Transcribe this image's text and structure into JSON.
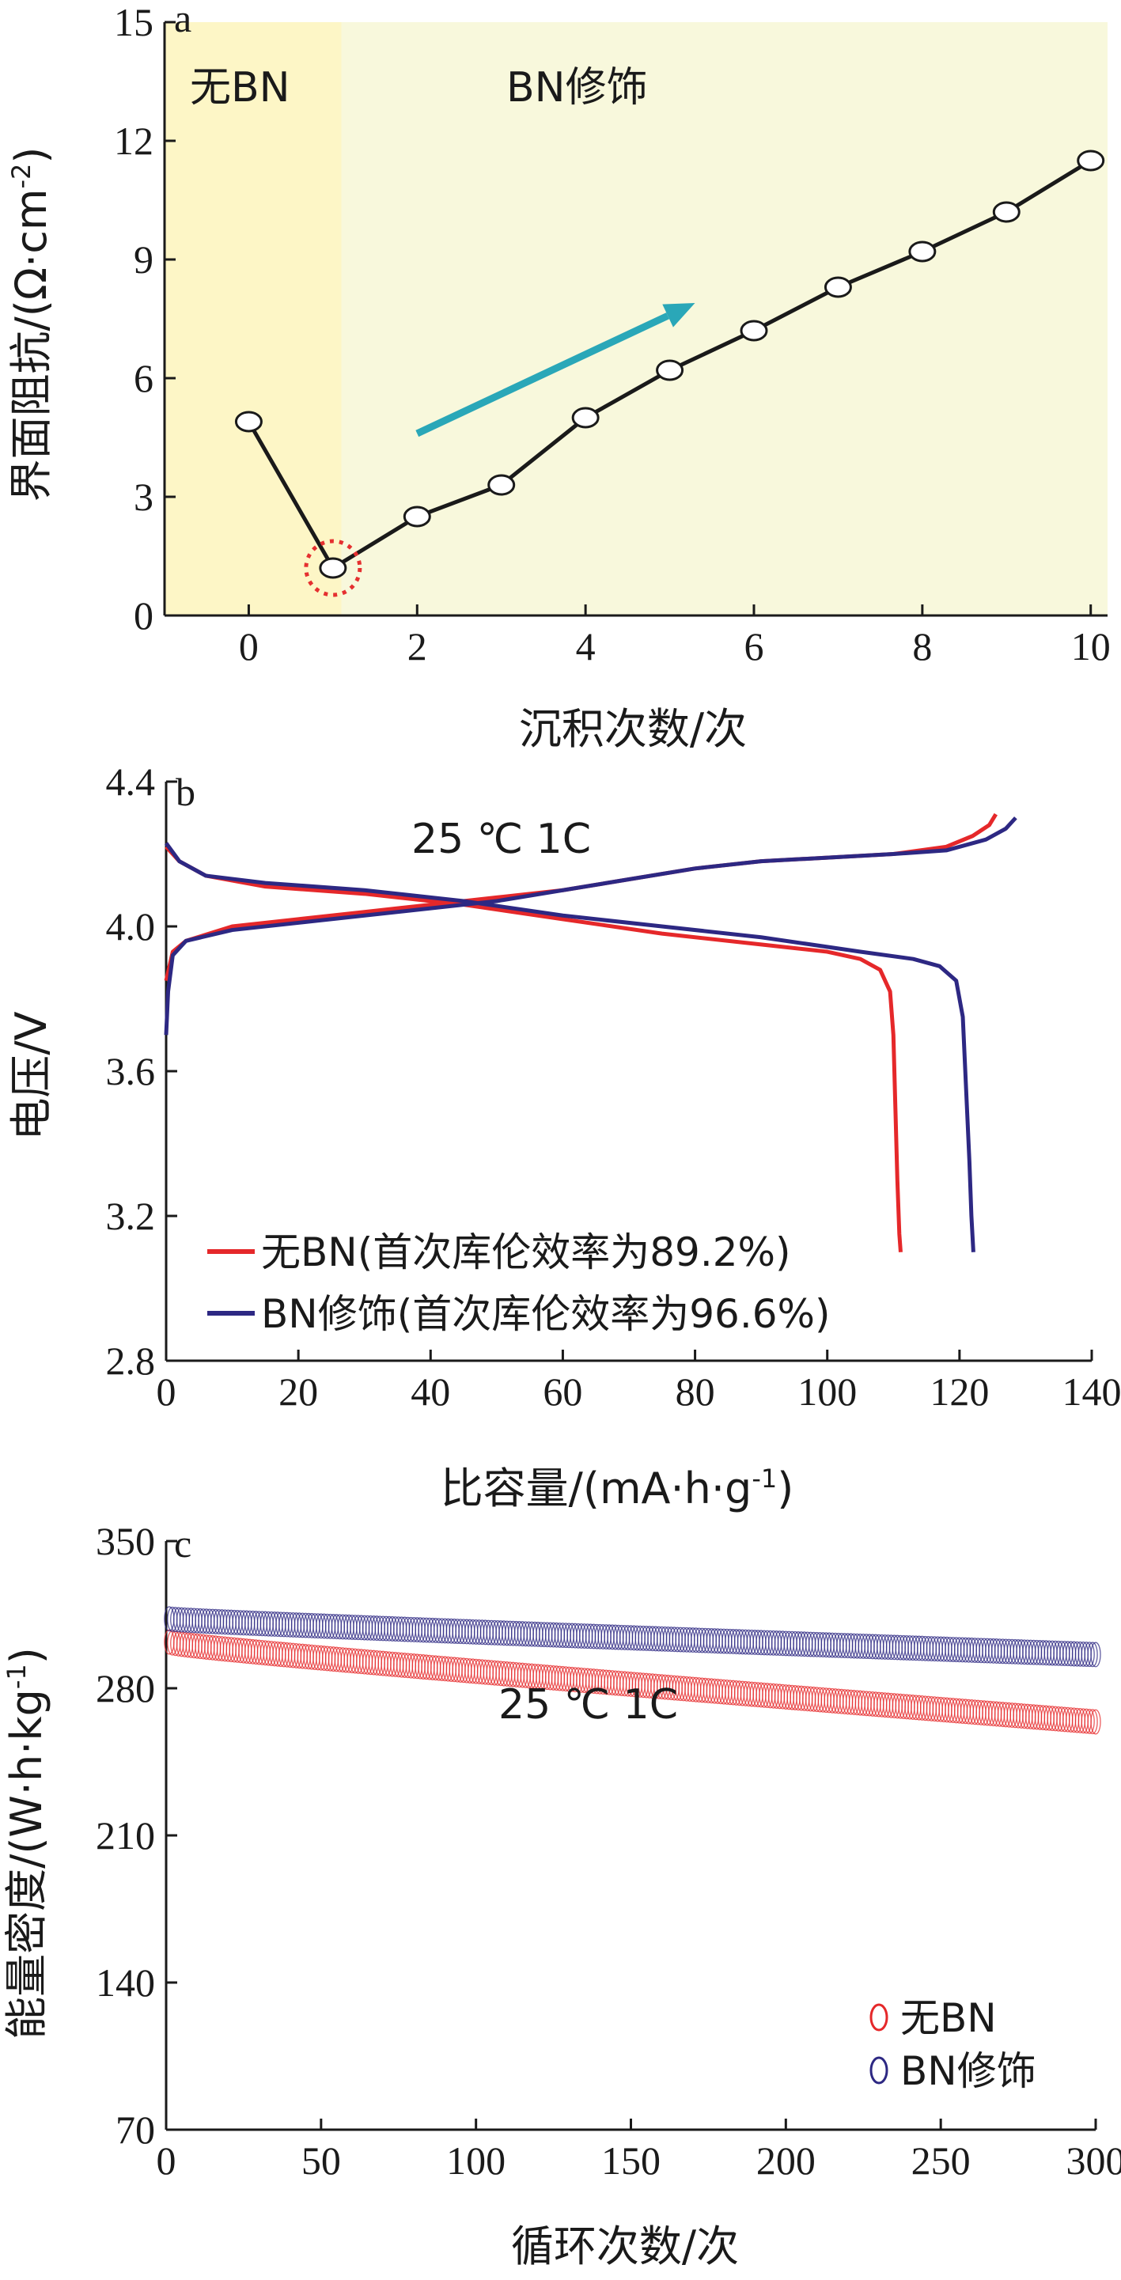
{
  "chart_data": [
    {
      "type": "line",
      "panel_label": "a",
      "xlabel": "沉积次数/次",
      "ylabel": "界面阻抗/(Ω·cm",
      "ylabel_sup": "-2",
      "ylabel_end": ")",
      "xlim": [
        -1,
        10.2
      ],
      "ylim": [
        0,
        15
      ],
      "xticks": [
        0,
        2,
        4,
        6,
        8,
        10
      ],
      "yticks": [
        0,
        3,
        6,
        9,
        12,
        15
      ],
      "regions": [
        {
          "label": "无BN",
          "x_from": -1,
          "x_to": 1.1,
          "color": "#fdf6c6"
        },
        {
          "label": "BN修饰",
          "x_from": 1.1,
          "x_to": 10.2,
          "color": "#f8f8dc"
        }
      ],
      "series": [
        {
          "x": [
            0,
            1,
            2,
            3,
            4,
            5,
            6,
            7,
            8,
            9,
            10
          ],
          "values": [
            4.9,
            1.2,
            2.5,
            3.3,
            5.0,
            6.2,
            7.2,
            8.3,
            9.2,
            10.2,
            11.5
          ],
          "color": "#1a1a1a"
        }
      ],
      "highlight_point": {
        "x": 1,
        "y": 1.2,
        "color": "#e53030"
      },
      "trend_arrow": {
        "x1": 2.0,
        "y1": 4.6,
        "x2": 5.3,
        "y2": 7.9,
        "color": "#2aa7b8"
      }
    },
    {
      "type": "line",
      "panel_label": "b",
      "xlabel": "比容量/(mA·h·g",
      "xlabel_sup": "-1",
      "xlabel_end": ")",
      "ylabel": "电压/V",
      "xlim": [
        0,
        140
      ],
      "ylim": [
        2.8,
        4.4
      ],
      "xticks": [
        0,
        20,
        40,
        60,
        80,
        100,
        120,
        140
      ],
      "yticks": [
        2.8,
        3.2,
        3.6,
        4.0,
        4.4
      ],
      "annotation": "25 ℃ 1C",
      "series": [
        {
          "name": "无BN(首次库伦效率为89.2%)",
          "color": "#e5282a",
          "charge": {
            "x": [
              0,
              1,
              3,
              10,
              20,
              30,
              40,
              50,
              60,
              70,
              80,
              90,
              100,
              110,
              118,
              122,
              124.5,
              125.5
            ],
            "y": [
              3.85,
              3.93,
              3.96,
              4.0,
              4.02,
              4.04,
              4.06,
              4.08,
              4.1,
              4.13,
              4.16,
              4.18,
              4.19,
              4.2,
              4.22,
              4.25,
              4.28,
              4.31
            ]
          },
          "discharge": {
            "x": [
              0,
              2,
              6,
              15,
              30,
              45,
              60,
              75,
              90,
              100,
              105,
              108,
              109.5,
              110,
              110.3,
              110.6,
              110.9,
              111.1
            ],
            "y": [
              4.22,
              4.18,
              4.14,
              4.11,
              4.09,
              4.06,
              4.02,
              3.98,
              3.95,
              3.93,
              3.91,
              3.88,
              3.82,
              3.7,
              3.5,
              3.3,
              3.15,
              3.1
            ]
          }
        },
        {
          "name": "BN修饰(首次库伦效率为96.6%)",
          "color": "#2d2883",
          "charge": {
            "x": [
              0,
              0.3,
              1,
              3,
              10,
              20,
              30,
              40,
              50,
              60,
              70,
              80,
              90,
              100,
              110,
              118,
              124,
              127,
              128.5
            ],
            "y": [
              3.7,
              3.82,
              3.92,
              3.96,
              3.99,
              4.01,
              4.03,
              4.05,
              4.07,
              4.1,
              4.13,
              4.16,
              4.18,
              4.19,
              4.2,
              4.21,
              4.24,
              4.27,
              4.3
            ]
          },
          "discharge": {
            "x": [
              0,
              2,
              6,
              15,
              30,
              45,
              60,
              75,
              90,
              105,
              113,
              117,
              119.5,
              120.5,
              121,
              121.5,
              121.8,
              122.1
            ],
            "y": [
              4.23,
              4.18,
              4.14,
              4.12,
              4.1,
              4.07,
              4.03,
              4.0,
              3.97,
              3.93,
              3.91,
              3.89,
              3.85,
              3.75,
              3.55,
              3.35,
              3.2,
              3.1
            ]
          }
        }
      ]
    },
    {
      "type": "scatter",
      "panel_label": "c",
      "xlabel": "循环次数/次",
      "ylabel": "能量密度/(W·h·kg",
      "ylabel_sup": "-1",
      "ylabel_end": ")",
      "xlim": [
        0,
        300
      ],
      "ylim": [
        70,
        350
      ],
      "xticks": [
        0,
        50,
        100,
        150,
        200,
        250,
        300
      ],
      "yticks": [
        70,
        140,
        210,
        280,
        350
      ],
      "annotation": "25 ℃ 1C",
      "series": [
        {
          "name": "无BN",
          "color": "#e5282a",
          "start": 302,
          "end": 264,
          "spread": 3.5
        },
        {
          "name": "BN修饰",
          "color": "#2d2883",
          "start": 313,
          "end": 296,
          "spread": 3.5
        }
      ],
      "legend_position": "bottom-right"
    }
  ]
}
